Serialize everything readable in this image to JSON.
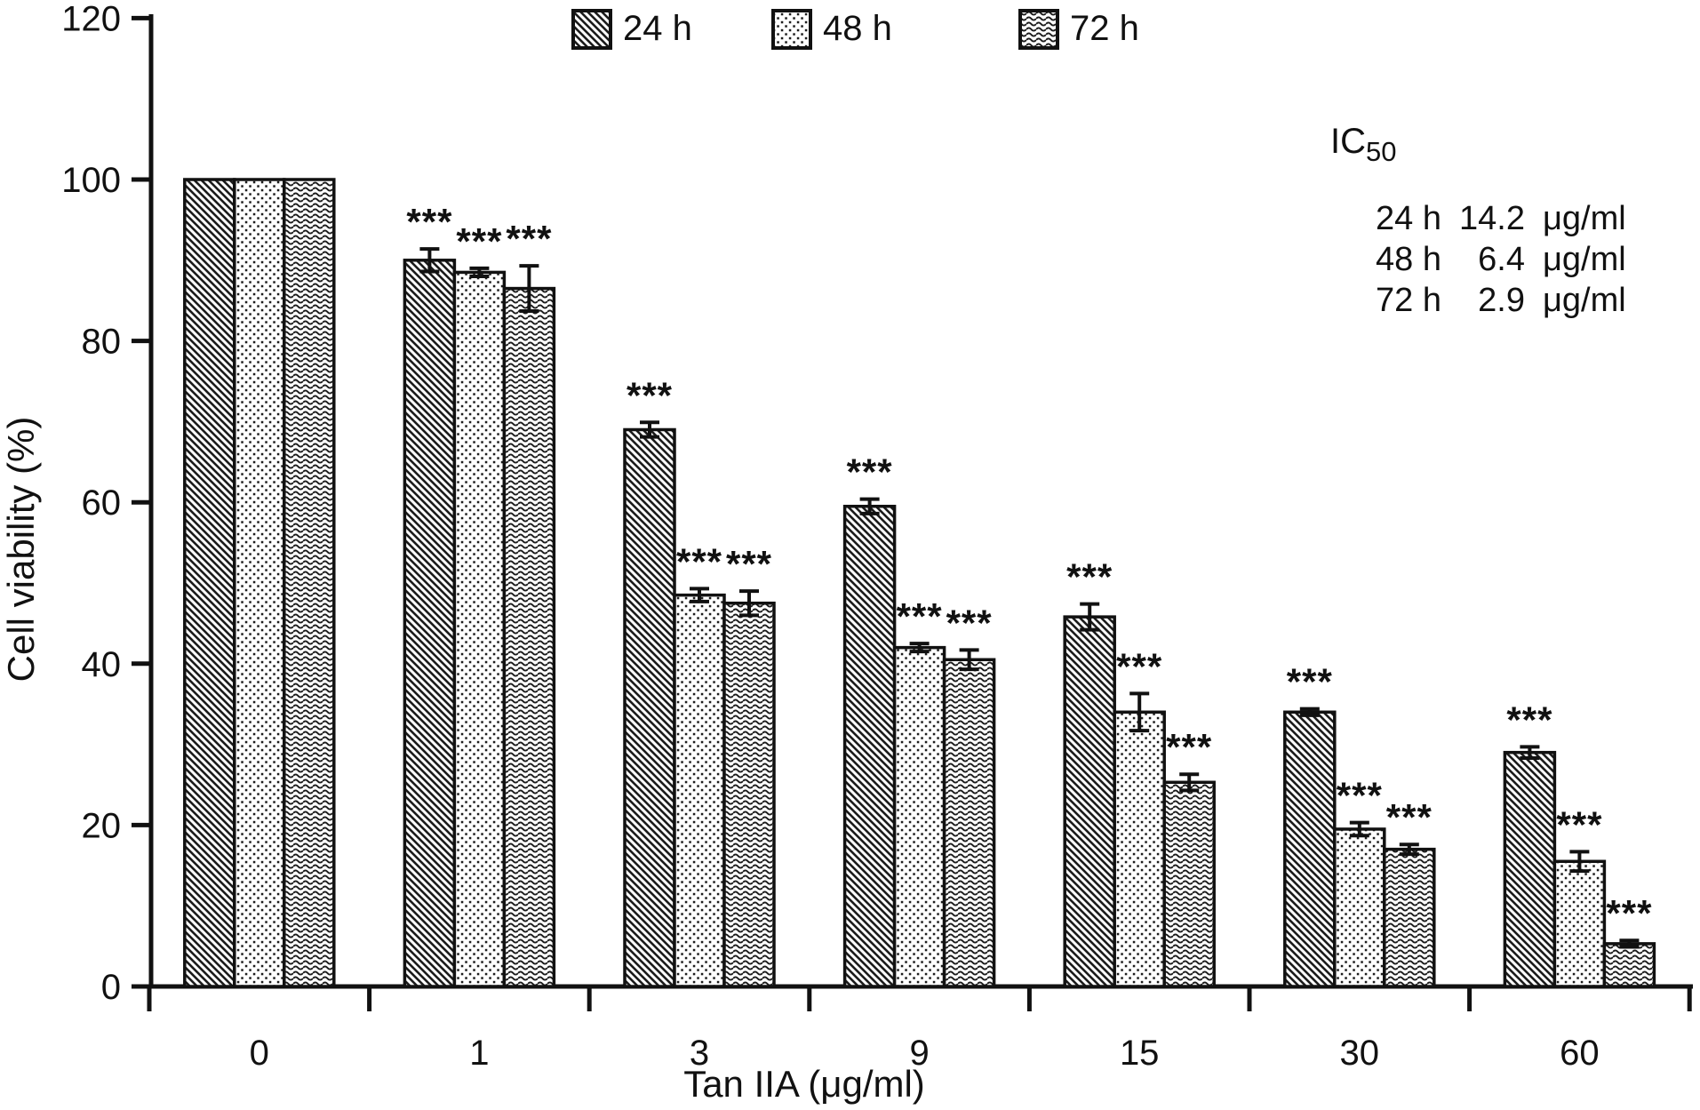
{
  "figure": {
    "y_axis_title": "Cell viability (%)",
    "x_axis_title": "Tan IIA (μg/ml)",
    "y_ticks": [
      0,
      20,
      40,
      60,
      80,
      100,
      120
    ],
    "legend": [
      {
        "id": "24h",
        "label": "24 h",
        "pattern": "hatch"
      },
      {
        "id": "48h",
        "label": "48 h",
        "pattern": "dots"
      },
      {
        "id": "72h",
        "label": "72 h",
        "pattern": "waves"
      }
    ],
    "ic50": {
      "title_main": "IC",
      "title_sub": "50",
      "rows": [
        {
          "time": "24 h",
          "value": "14.2",
          "unit": "μg/ml"
        },
        {
          "time": "48 h",
          "value": "6.4",
          "unit": "μg/ml"
        },
        {
          "time": "72 h",
          "value": "2.9",
          "unit": "μg/ml"
        }
      ]
    }
  },
  "chart_data": {
    "type": "bar",
    "title": "",
    "xlabel": "Tan IIA (μg/ml)",
    "ylabel": "Cell viability (%)",
    "ylim": [
      0,
      120
    ],
    "grid": false,
    "legend_position": "top",
    "categories": [
      "0",
      "1",
      "3",
      "9",
      "15",
      "30",
      "60"
    ],
    "series": [
      {
        "name": "24 h",
        "pattern": "hatch",
        "values": [
          100,
          90.0,
          69.0,
          59.5,
          45.8,
          34.0,
          29.0
        ],
        "errors": [
          0,
          1.4,
          0.9,
          0.9,
          1.6,
          0.4,
          0.7
        ],
        "significance": [
          "",
          "***",
          "***",
          "***",
          "***",
          "***",
          "***"
        ]
      },
      {
        "name": "48 h",
        "pattern": "dots",
        "values": [
          100,
          88.5,
          48.5,
          42.0,
          34.0,
          19.5,
          15.5
        ],
        "errors": [
          0,
          0.5,
          0.8,
          0.5,
          2.3,
          0.8,
          1.2
        ],
        "significance": [
          "",
          "***",
          "***",
          "***",
          "***",
          "***",
          "***"
        ]
      },
      {
        "name": "72 h",
        "pattern": "waves",
        "values": [
          100,
          86.5,
          47.5,
          40.5,
          25.3,
          17.0,
          5.3
        ],
        "errors": [
          0,
          2.8,
          1.5,
          1.2,
          1.0,
          0.6,
          0.4
        ],
        "significance": [
          "",
          "***",
          "***",
          "***",
          "***",
          "***",
          "***"
        ]
      }
    ]
  }
}
